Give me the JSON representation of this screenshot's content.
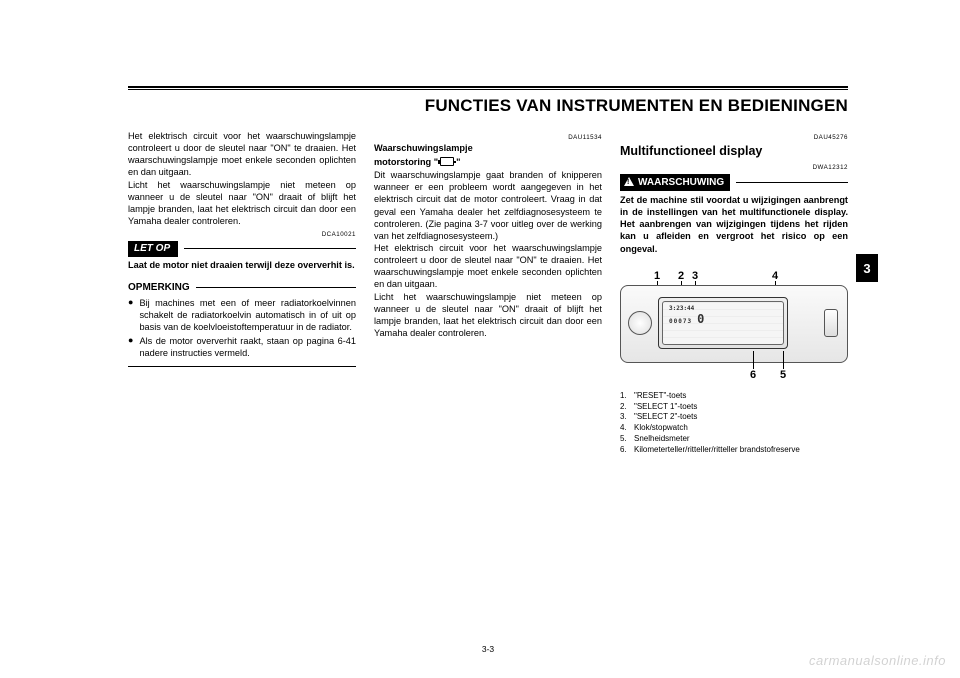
{
  "header": {
    "title": "FUNCTIES VAN INSTRUMENTEN EN BEDIENINGEN"
  },
  "page_number": "3-3",
  "side_tab": "3",
  "watermark": "carmanualsonline.info",
  "col1": {
    "p1": "Het elektrisch circuit voor het waarschuwingslampje controleert u door de sleutel naar \"ON\" te draaien. Het waarschuwingslampje moet enkele seconden oplichten en dan uitgaan.",
    "p2": "Licht het waarschuwingslampje niet meteen op wanneer u de sleutel naar \"ON\" draait of blijft het lampje branden, laat het elektrisch circuit dan door een Yamaha dealer controleren.",
    "code1": "DCA10021",
    "letop_label": "LET OP",
    "letop_text": "Laat de motor niet draaien terwijl deze oververhit is.",
    "opm_label": "OPMERKING",
    "bullet1": "Bij machines met een of meer radiatorkoelvinnen schakelt de radiatorkoelvin automatisch in of uit op basis van de koelvloeistoftemperatuur in de radiator.",
    "bullet2": "Als de motor oververhit raakt, staan op pagina 6-41 nadere instructies vermeld."
  },
  "col2": {
    "code1": "DAU11534",
    "subhead1": "Waarschuwingslampje",
    "subhead2_a": "motorstoring \"",
    "subhead2_b": "\"",
    "p1": "Dit waarschuwingslampje gaat branden of knipperen wanneer er een probleem wordt aangegeven in het elektrisch circuit dat de motor controleert. Vraag in dat geval een Yamaha dealer het zelfdiagnosesysteem te controleren. (Zie pagina 3-7 voor uitleg over de werking van het zelfdiagnosesysteem.)",
    "p2": "Het elektrisch circuit voor het waarschuwingslampje controleert u door de sleutel naar \"ON\" te draaien. Het waarschuwingslampje moet enkele seconden oplichten en dan uitgaan.",
    "p3": "Licht het waarschuwingslampje niet meteen op wanneer u de sleutel naar \"ON\" draait of blijft het lampje branden, laat het elektrisch circuit dan door een Yamaha dealer controleren."
  },
  "col3": {
    "code1": "DAU45276",
    "h2": "Multifunctioneel display",
    "code2": "DWA12312",
    "warn_label": "WAARSCHUWING",
    "warn_text": "Zet de machine stil voordat u wijzigingen aanbrengt in de instellingen van het multifunctionele display. Het aanbrengen van wijzigingen tijdens het rijden kan u afleiden en vergroot het risico op een ongeval.",
    "fig": {
      "n1": "1",
      "n2": "2",
      "n3": "3",
      "n4": "4",
      "n5": "5",
      "n6": "6",
      "lcd_top": "3:23:44",
      "lcd_mid": "00073",
      "lcd_right": "0"
    },
    "key": {
      "k1": "\"RESET\"-toets",
      "k2": "\"SELECT 1\"-toets",
      "k3": "\"SELECT 2\"-toets",
      "k4": "Klok/stopwatch",
      "k5": "Snelheidsmeter",
      "k6": "Kilometerteller/ritteller/ritteller brandstofreserve"
    }
  }
}
